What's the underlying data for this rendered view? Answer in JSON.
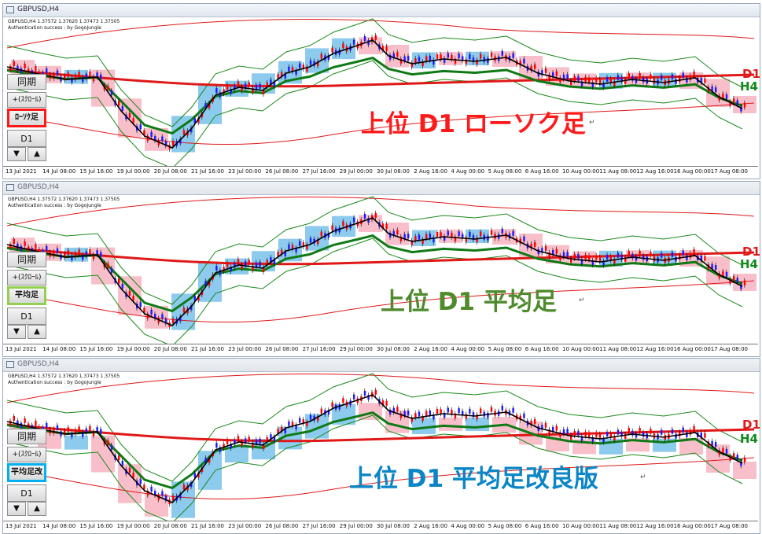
{
  "window_title": "GBPUSD,H4",
  "window_title_inactive": "GBPUSD,H4",
  "chart_info": {
    "line1": "GBPUSD,H4  1.37572 1.37620 1.37473 1.37505",
    "line2": "Authentication success : by GogoJungle"
  },
  "controls": {
    "sync_label": "同期",
    "scroll_label": "+(ｽｸﾛｰﾙ)",
    "timeframe_label": "D1",
    "down_label": "▼",
    "up_label": "▲"
  },
  "line_labels": {
    "d1": "D1",
    "h4": "H4"
  },
  "panels": [
    {
      "mode_label": "ﾛｰｿｸ足",
      "title": "上位 D1 ローソク足",
      "title_color": "#ff1a1a",
      "accent": "#ff1a1a"
    },
    {
      "mode_label": "平均足",
      "title": "上位 D1 平均足",
      "title_color": "#4f8a2d",
      "accent": "#92d050"
    },
    {
      "mode_label": "平均足改",
      "title": "上位 D1 平均足改良版",
      "title_color": "#0a86c6",
      "accent": "#00b0f0"
    }
  ],
  "x_labels": [
    "13 Jul 2021",
    "14 Jul 08:00",
    "15 Jul 16:00",
    "19 Jul 00:00",
    "20 Jul 08:00",
    "21 Jul 16:00",
    "23 Jul 00:00",
    "26 Jul 08:00",
    "27 Jul 16:00",
    "29 Jul 00:00",
    "30 Jul 08:00",
    "2 Aug 16:00",
    "4 Aug 00:00",
    "5 Aug 08:00",
    "6 Aug 16:00",
    "10 Aug 00:00",
    "11 Aug 08:00",
    "12 Aug 16:00",
    "16 Aug 00:00",
    "17 Aug 08:00"
  ],
  "colors": {
    "bull_candle": "#1a1aff",
    "bear_candle": "#ff0000",
    "bull_higher_tf": "#7fc4ec",
    "bear_higher_tf": "#f7b8c4",
    "ma_d1": "#e01818",
    "ma_h4": "#0f7a15",
    "ma_fast": "#000000",
    "band_outer": "#e01818",
    "band_inner": "#1a8a1a"
  }
}
